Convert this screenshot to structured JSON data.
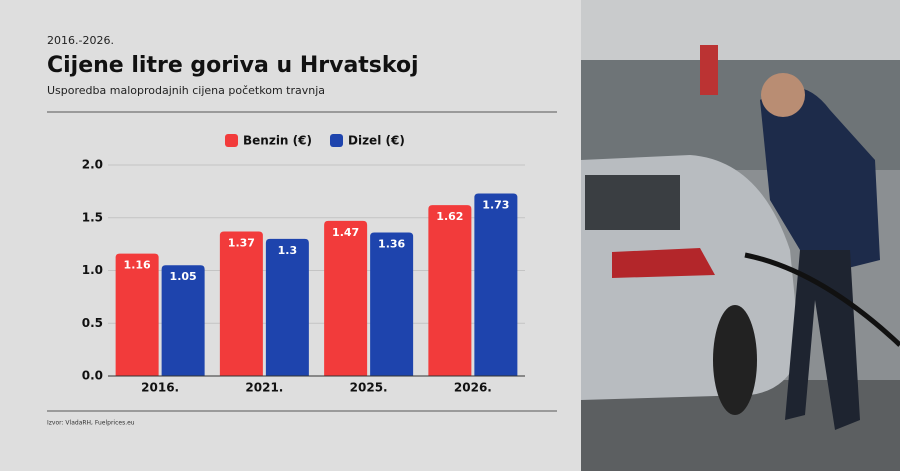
{
  "chart_data": {
    "type": "bar",
    "kicker": "2016.-2026.",
    "title": "Cijene litre goriva u Hrvatskoj",
    "subtitle": "Usporedba maloprodajnih cijena početkom travnja",
    "source": "Izvor: VladaRH, Fuelprices.eu",
    "categories": [
      "2016.",
      "2021.",
      "2025.",
      "2026."
    ],
    "series": [
      {
        "name": "Benzin (€)",
        "color": "#f23b3b",
        "values": [
          1.16,
          1.37,
          1.47,
          1.62
        ]
      },
      {
        "name": "Dizel (€)",
        "color": "#1e44ad",
        "values": [
          1.05,
          1.3,
          1.36,
          1.73
        ]
      }
    ],
    "ylim": [
      0,
      2
    ],
    "yticks": [
      {
        "value": 0,
        "label": "0.0"
      },
      0.5,
      {
        "value": 1,
        "label": "1.0"
      },
      1.5,
      {
        "value": 2,
        "label": "2.0"
      }
    ],
    "grid": true
  }
}
